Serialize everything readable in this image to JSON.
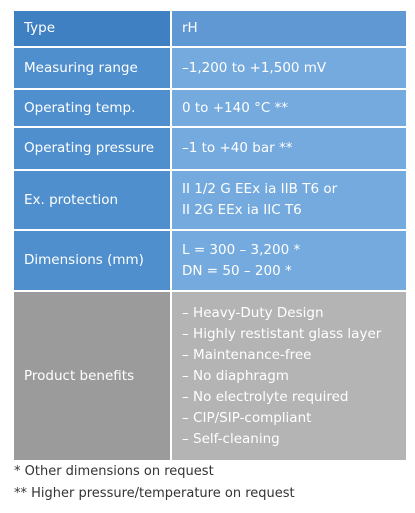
{
  "table": {
    "header": [
      "Type",
      "rH"
    ],
    "rows": [
      [
        "Measuring range",
        "–1,200 to +1,500 mV"
      ],
      [
        "Operating temp.",
        "0 to +140 °C **"
      ],
      [
        "Operating pressure",
        "–1 to +40 bar **"
      ],
      [
        "Ex. protection",
        [
          "II 1/2 G EEx ia IIB T6 or",
          "II 2G EEx ia IIC T6"
        ]
      ],
      [
        "Dimensions (mm)",
        [
          "L = 300 – 3,200 *",
          "DN = 50 – 200 *"
        ]
      ],
      [
        "Product benefits",
        [
          "– Heavy-Duty Design",
          "– Highly restistant glass layer",
          "– Maintenance-free",
          "– No diaphragm",
          "– No electrolyte required",
          "– CIP/SIP-compliant",
          "– Self-cleaning"
        ]
      ]
    ]
  },
  "footnotes": [
    "* Other dimensions on request",
    "** Higher pressure/temperature on request"
  ]
}
